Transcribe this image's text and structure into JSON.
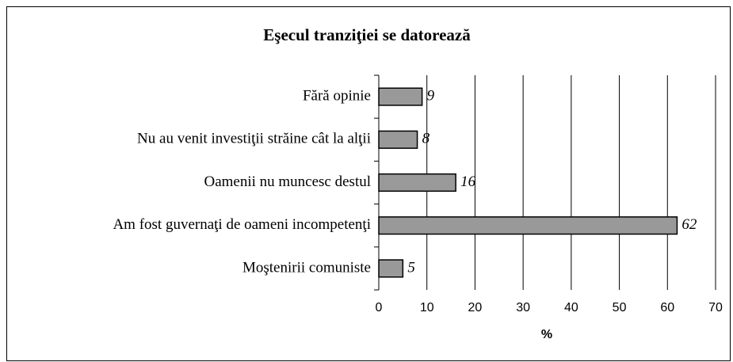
{
  "chart_data": {
    "type": "barh",
    "title": "Eşecul tranziţiei se datorează",
    "categories": [
      "Fără opinie",
      "Nu au venit investiţii străine cât la alţii",
      "Oamenii nu muncesc destul",
      "Am fost guvernaţi de oameni incompetenţi",
      "Moştenirii comuniste"
    ],
    "values": [
      9,
      8,
      16,
      62,
      5
    ],
    "color": "#999999",
    "xlabel": "%",
    "xlim": [
      0,
      70
    ],
    "xticks": [
      0,
      10,
      20,
      30,
      40,
      50,
      60,
      70
    ],
    "grid": true
  }
}
